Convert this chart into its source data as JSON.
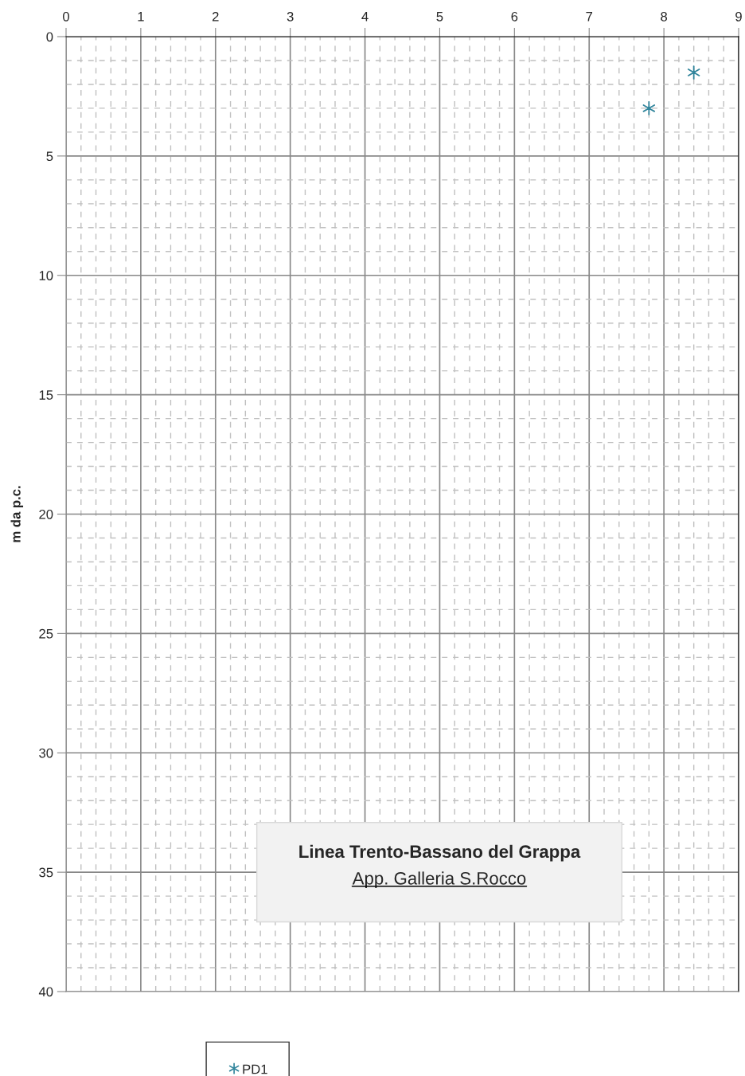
{
  "chart_data": {
    "type": "scatter",
    "ylabel": "m da p.c.",
    "series": [
      {
        "name": "PD1",
        "color": "#31859c",
        "x": [
          7.8,
          8.4
        ],
        "values": [
          3.0,
          1.5
        ]
      }
    ],
    "xlim": [
      0,
      9
    ],
    "xticks": [
      0,
      1,
      2,
      3,
      4,
      5,
      6,
      7,
      8,
      9
    ],
    "ylim": [
      40,
      0
    ],
    "yticks": [
      0,
      5,
      10,
      15,
      20,
      25,
      30,
      35,
      40
    ],
    "grid": true,
    "legend": "bottom",
    "marker": "cross",
    "annotations": [
      "Linea Trento-Bassano del Grappa",
      "App. Galleria S.Rocco"
    ]
  }
}
